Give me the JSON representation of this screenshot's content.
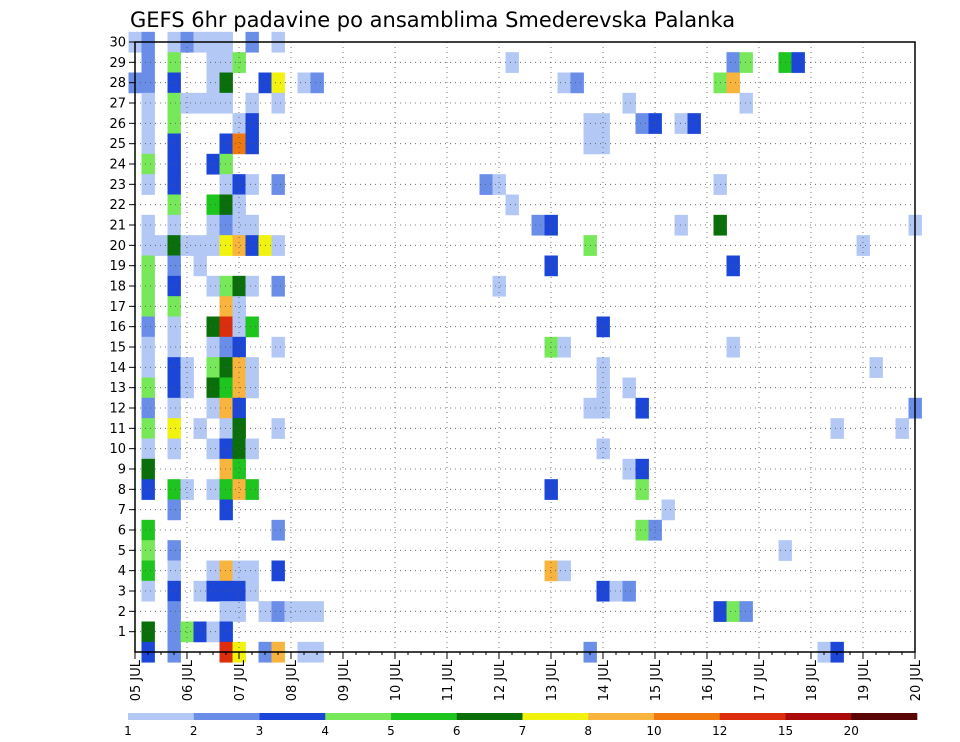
{
  "chart_data": {
    "type": "heatmap",
    "title": "GEFS 6hr padavine po ansamblima Smederevska Palanka",
    "xlabel": "",
    "ylabel": "",
    "x_tick_labels": [
      "05 JUL",
      "06 JUL",
      "07 JUL",
      "08 JUL",
      "09 JUL",
      "10 JUL",
      "11 JUL",
      "12 JUL",
      "13 JUL",
      "14 JUL",
      "15 JUL",
      "16 JUL",
      "17 JUL",
      "18 JUL",
      "19 JUL",
      "20 JUL"
    ],
    "y_tick_labels": [
      "1",
      "2",
      "3",
      "4",
      "5",
      "6",
      "7",
      "8",
      "9",
      "10",
      "11",
      "12",
      "13",
      "14",
      "15",
      "16",
      "17",
      "18",
      "19",
      "20",
      "21",
      "22",
      "23",
      "24",
      "25",
      "26",
      "27",
      "28",
      "29",
      "30"
    ],
    "x_range": [
      0,
      60
    ],
    "y_range": [
      0,
      30
    ],
    "grid": true,
    "colorbar": {
      "labels": [
        "1",
        "2",
        "3",
        "4",
        "5",
        "6",
        "7",
        "8",
        "10",
        "12",
        "15",
        "20"
      ],
      "colors": [
        "#b4c8f5",
        "#6a8ee8",
        "#1c46d8",
        "#77e85a",
        "#1ec51e",
        "#0a6e0a",
        "#f2f20f",
        "#f8b43c",
        "#f0780f",
        "#dc2d0f",
        "#aa0a0a",
        "#5a0505"
      ],
      "placement": "bottom"
    },
    "cells": [
      [
        0,
        30,
        1
      ],
      [
        1,
        30,
        2
      ],
      [
        1,
        29,
        2
      ],
      [
        1,
        28,
        2
      ],
      [
        0,
        28,
        2
      ],
      [
        1,
        27,
        1
      ],
      [
        1,
        26,
        1
      ],
      [
        1,
        25,
        1
      ],
      [
        1,
        24,
        4
      ],
      [
        1,
        23,
        1
      ],
      [
        1,
        21,
        1
      ],
      [
        1,
        20,
        1
      ],
      [
        1,
        19,
        4
      ],
      [
        1,
        18,
        4
      ],
      [
        1,
        17,
        4
      ],
      [
        1,
        16,
        2
      ],
      [
        1,
        15,
        1
      ],
      [
        1,
        14,
        1
      ],
      [
        1,
        13,
        4
      ],
      [
        1,
        12,
        2
      ],
      [
        1,
        11,
        4
      ],
      [
        1,
        10,
        1
      ],
      [
        1,
        9,
        6
      ],
      [
        1,
        8,
        3
      ],
      [
        1,
        6,
        5
      ],
      [
        1,
        5,
        4
      ],
      [
        1,
        4,
        5
      ],
      [
        1,
        3,
        1
      ],
      [
        1,
        1,
        6
      ],
      [
        1,
        0,
        3
      ],
      [
        2,
        20,
        1
      ],
      [
        3,
        30,
        1
      ],
      [
        3,
        29,
        4
      ],
      [
        3,
        28,
        3
      ],
      [
        3,
        27,
        4
      ],
      [
        3,
        26,
        4
      ],
      [
        3,
        25,
        3
      ],
      [
        3,
        24,
        3
      ],
      [
        3,
        23,
        3
      ],
      [
        3,
        22,
        4
      ],
      [
        3,
        21,
        1
      ],
      [
        3,
        20,
        6
      ],
      [
        3,
        19,
        2
      ],
      [
        3,
        18,
        3
      ],
      [
        3,
        17,
        4
      ],
      [
        3,
        16,
        1
      ],
      [
        3,
        15,
        1
      ],
      [
        3,
        14,
        3
      ],
      [
        3,
        13,
        3
      ],
      [
        3,
        12,
        1
      ],
      [
        3,
        11,
        7
      ],
      [
        3,
        10,
        1
      ],
      [
        3,
        8,
        5
      ],
      [
        3,
        7,
        2
      ],
      [
        3,
        5,
        2
      ],
      [
        3,
        4,
        1
      ],
      [
        3,
        3,
        3
      ],
      [
        3,
        2,
        2
      ],
      [
        3,
        1,
        2
      ],
      [
        3,
        0,
        2
      ],
      [
        4,
        30,
        2
      ],
      [
        4,
        27,
        1
      ],
      [
        4,
        20,
        1
      ],
      [
        4,
        14,
        1
      ],
      [
        4,
        13,
        1
      ],
      [
        4,
        8,
        1
      ],
      [
        4,
        1,
        4
      ],
      [
        5,
        30,
        1
      ],
      [
        5,
        27,
        1
      ],
      [
        5,
        20,
        1
      ],
      [
        5,
        19,
        1
      ],
      [
        5,
        11,
        1
      ],
      [
        5,
        3,
        1
      ],
      [
        5,
        1,
        3
      ],
      [
        6,
        30,
        1
      ],
      [
        6,
        29,
        1
      ],
      [
        6,
        28,
        1
      ],
      [
        6,
        27,
        1
      ],
      [
        6,
        24,
        3
      ],
      [
        6,
        22,
        5
      ],
      [
        6,
        21,
        1
      ],
      [
        6,
        20,
        1
      ],
      [
        6,
        18,
        1
      ],
      [
        6,
        16,
        6
      ],
      [
        6,
        15,
        1
      ],
      [
        6,
        14,
        4
      ],
      [
        6,
        13,
        6
      ],
      [
        6,
        12,
        1
      ],
      [
        6,
        10,
        1
      ],
      [
        6,
        8,
        1
      ],
      [
        6,
        4,
        1
      ],
      [
        6,
        3,
        3
      ],
      [
        6,
        1,
        1
      ],
      [
        7,
        30,
        1
      ],
      [
        7,
        29,
        1
      ],
      [
        7,
        28,
        6
      ],
      [
        7,
        27,
        1
      ],
      [
        7,
        25,
        3
      ],
      [
        7,
        24,
        4
      ],
      [
        7,
        23,
        1
      ],
      [
        7,
        22,
        6
      ],
      [
        7,
        21,
        2
      ],
      [
        7,
        20,
        7
      ],
      [
        7,
        18,
        4
      ],
      [
        7,
        17,
        8
      ],
      [
        7,
        16,
        10
      ],
      [
        7,
        15,
        2
      ],
      [
        7,
        14,
        6
      ],
      [
        7,
        13,
        5
      ],
      [
        7,
        12,
        8
      ],
      [
        7,
        11,
        1
      ],
      [
        7,
        10,
        3
      ],
      [
        7,
        9,
        8
      ],
      [
        7,
        8,
        5
      ],
      [
        7,
        7,
        3
      ],
      [
        7,
        4,
        8
      ],
      [
        7,
        3,
        3
      ],
      [
        7,
        2,
        1
      ],
      [
        7,
        1,
        3
      ],
      [
        7,
        0,
        10
      ],
      [
        8,
        29,
        4
      ],
      [
        8,
        26,
        1
      ],
      [
        8,
        25,
        9
      ],
      [
        8,
        23,
        3
      ],
      [
        8,
        22,
        1
      ],
      [
        8,
        21,
        1
      ],
      [
        8,
        20,
        8
      ],
      [
        8,
        18,
        6
      ],
      [
        8,
        17,
        1
      ],
      [
        8,
        16,
        1
      ],
      [
        8,
        15,
        3
      ],
      [
        8,
        14,
        8
      ],
      [
        8,
        13,
        8
      ],
      [
        8,
        12,
        3
      ],
      [
        8,
        11,
        6
      ],
      [
        8,
        10,
        6
      ],
      [
        8,
        9,
        5
      ],
      [
        8,
        8,
        8
      ],
      [
        8,
        4,
        1
      ],
      [
        8,
        3,
        3
      ],
      [
        8,
        2,
        1
      ],
      [
        8,
        0,
        7
      ],
      [
        9,
        30,
        2
      ],
      [
        9,
        27,
        1
      ],
      [
        9,
        26,
        3
      ],
      [
        9,
        25,
        3
      ],
      [
        9,
        23,
        1
      ],
      [
        9,
        21,
        1
      ],
      [
        9,
        20,
        3
      ],
      [
        9,
        18,
        1
      ],
      [
        9,
        16,
        5
      ],
      [
        9,
        14,
        1
      ],
      [
        9,
        13,
        1
      ],
      [
        9,
        10,
        1
      ],
      [
        9,
        8,
        5
      ],
      [
        9,
        4,
        1
      ],
      [
        9,
        3,
        1
      ],
      [
        10,
        28,
        3
      ],
      [
        10,
        20,
        7
      ],
      [
        10,
        2,
        1
      ],
      [
        10,
        0,
        2
      ],
      [
        11,
        30,
        1
      ],
      [
        11,
        28,
        7
      ],
      [
        11,
        27,
        1
      ],
      [
        11,
        23,
        2
      ],
      [
        11,
        20,
        1
      ],
      [
        11,
        18,
        2
      ],
      [
        11,
        15,
        1
      ],
      [
        11,
        11,
        1
      ],
      [
        11,
        6,
        2
      ],
      [
        11,
        4,
        3
      ],
      [
        11,
        2,
        2
      ],
      [
        11,
        0,
        8
      ],
      [
        12,
        2,
        1
      ],
      [
        13,
        28,
        1
      ],
      [
        13,
        2,
        1
      ],
      [
        13,
        0,
        1
      ],
      [
        14,
        28,
        2
      ],
      [
        14,
        2,
        1
      ],
      [
        14,
        0,
        1
      ],
      [
        27,
        23,
        2
      ],
      [
        28,
        23,
        1
      ],
      [
        28,
        18,
        1
      ],
      [
        29,
        29,
        1
      ],
      [
        29,
        22,
        1
      ],
      [
        31,
        21,
        2
      ],
      [
        32,
        21,
        3
      ],
      [
        32,
        19,
        3
      ],
      [
        32,
        15,
        4
      ],
      [
        32,
        8,
        3
      ],
      [
        32,
        4,
        8
      ],
      [
        33,
        28,
        1
      ],
      [
        33,
        15,
        1
      ],
      [
        33,
        4,
        1
      ],
      [
        34,
        28,
        2
      ],
      [
        35,
        26,
        1
      ],
      [
        35,
        25,
        1
      ],
      [
        35,
        20,
        4
      ],
      [
        35,
        12,
        1
      ],
      [
        35,
        0,
        2
      ],
      [
        36,
        26,
        1
      ],
      [
        36,
        25,
        1
      ],
      [
        36,
        16,
        3
      ],
      [
        36,
        14,
        1
      ],
      [
        36,
        13,
        1
      ],
      [
        36,
        12,
        1
      ],
      [
        36,
        10,
        1
      ],
      [
        36,
        3,
        3
      ],
      [
        37,
        3,
        1
      ],
      [
        38,
        27,
        1
      ],
      [
        38,
        13,
        1
      ],
      [
        38,
        9,
        1
      ],
      [
        38,
        3,
        2
      ],
      [
        39,
        26,
        2
      ],
      [
        39,
        12,
        3
      ],
      [
        39,
        9,
        3
      ],
      [
        39,
        8,
        4
      ],
      [
        39,
        6,
        4
      ],
      [
        40,
        26,
        3
      ],
      [
        40,
        6,
        2
      ],
      [
        41,
        7,
        1
      ],
      [
        42,
        26,
        1
      ],
      [
        42,
        21,
        1
      ],
      [
        43,
        26,
        3
      ],
      [
        45,
        23,
        1
      ],
      [
        45,
        21,
        6
      ],
      [
        45,
        2,
        3
      ],
      [
        45,
        28,
        4
      ],
      [
        46,
        29,
        2
      ],
      [
        46,
        28,
        8
      ],
      [
        46,
        19,
        3
      ],
      [
        46,
        15,
        1
      ],
      [
        46,
        2,
        4
      ],
      [
        47,
        29,
        4
      ],
      [
        47,
        27,
        1
      ],
      [
        47,
        2,
        2
      ],
      [
        50,
        29,
        5
      ],
      [
        50,
        5,
        1
      ],
      [
        51,
        29,
        3
      ],
      [
        53,
        0,
        1
      ],
      [
        54,
        11,
        1
      ],
      [
        54,
        0,
        3
      ],
      [
        56,
        20,
        1
      ],
      [
        57,
        14,
        1
      ],
      [
        59,
        11,
        1
      ],
      [
        60,
        21,
        1
      ],
      [
        60,
        12,
        2
      ]
    ]
  }
}
